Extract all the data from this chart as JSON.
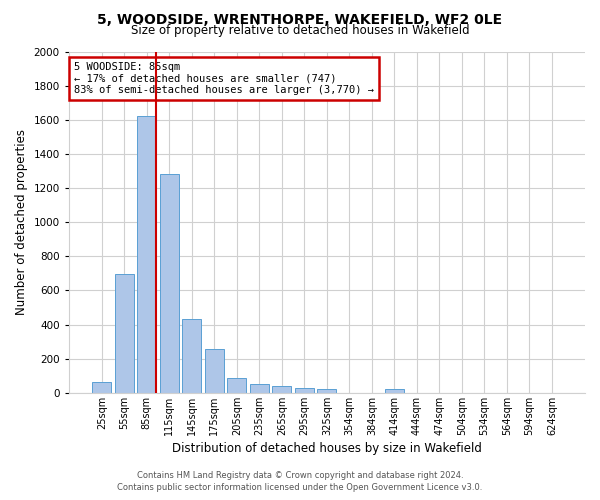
{
  "title": "5, WOODSIDE, WRENTHORPE, WAKEFIELD, WF2 0LE",
  "subtitle": "Size of property relative to detached houses in Wakefield",
  "xlabel": "Distribution of detached houses by size in Wakefield",
  "ylabel": "Number of detached properties",
  "bar_color": "#aec6e8",
  "bar_edge_color": "#5a9fd4",
  "annotation_line_color": "#cc0000",
  "annotation_box_color": "#cc0000",
  "categories": [
    "25sqm",
    "55sqm",
    "85sqm",
    "115sqm",
    "145sqm",
    "175sqm",
    "205sqm",
    "235sqm",
    "265sqm",
    "295sqm",
    "325sqm",
    "354sqm",
    "384sqm",
    "414sqm",
    "444sqm",
    "474sqm",
    "504sqm",
    "534sqm",
    "564sqm",
    "594sqm",
    "624sqm"
  ],
  "values": [
    65,
    695,
    1625,
    1280,
    435,
    255,
    90,
    55,
    40,
    30,
    25,
    0,
    0,
    20,
    0,
    0,
    0,
    0,
    0,
    0,
    0
  ],
  "property_bin_index": 2,
  "annotation_line1": "5 WOODSIDE: 85sqm",
  "annotation_line2": "← 17% of detached houses are smaller (747)",
  "annotation_line3": "83% of semi-detached houses are larger (3,770) →",
  "ylim": [
    0,
    2000
  ],
  "yticks": [
    0,
    200,
    400,
    600,
    800,
    1000,
    1200,
    1400,
    1600,
    1800,
    2000
  ],
  "footer_line1": "Contains HM Land Registry data © Crown copyright and database right 2024.",
  "footer_line2": "Contains public sector information licensed under the Open Government Licence v3.0.",
  "background_color": "#ffffff",
  "grid_color": "#d0d0d0"
}
